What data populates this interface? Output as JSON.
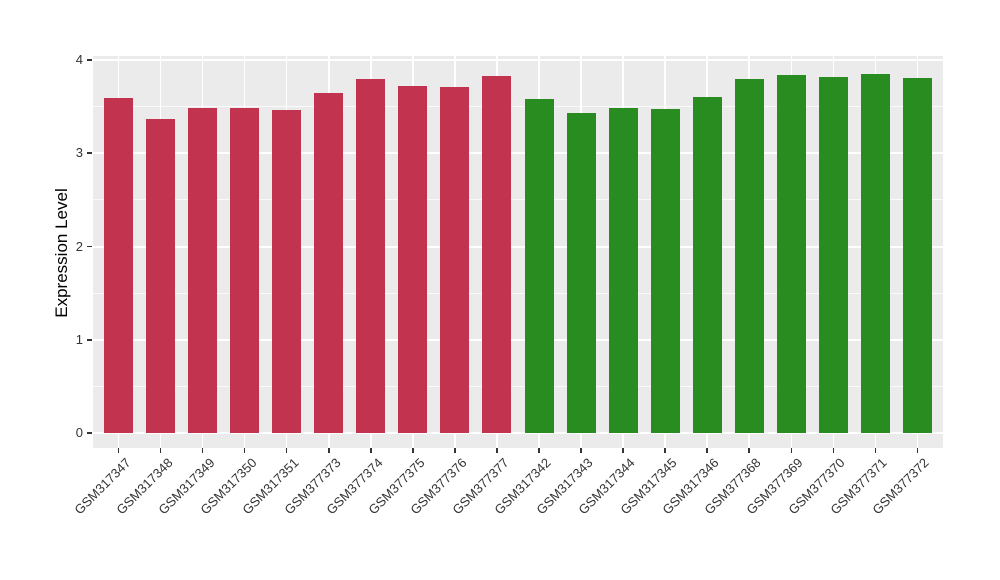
{
  "chart_data": {
    "type": "bar",
    "title": "",
    "xlabel": "",
    "ylabel": "Expression Level",
    "ylim": [
      0,
      4
    ],
    "yticks": [
      "0",
      "1",
      "2",
      "3",
      "4"
    ],
    "grid": true,
    "legend": false,
    "categories": [
      "GSM317347",
      "GSM317348",
      "GSM317349",
      "GSM317350",
      "GSM317351",
      "GSM377373",
      "GSM377374",
      "GSM377375",
      "GSM377376",
      "GSM377377",
      "GSM317342",
      "GSM317343",
      "GSM317344",
      "GSM317345",
      "GSM317346",
      "GSM377368",
      "GSM377369",
      "GSM377370",
      "GSM377371",
      "GSM377372"
    ],
    "values": [
      3.59,
      3.37,
      3.49,
      3.48,
      3.46,
      3.65,
      3.8,
      3.72,
      3.71,
      3.83,
      3.58,
      3.43,
      3.48,
      3.47,
      3.6,
      3.8,
      3.84,
      3.82,
      3.85,
      3.81
    ],
    "bar_groups": [
      "group1",
      "group1",
      "group1",
      "group1",
      "group1",
      "group1",
      "group1",
      "group1",
      "group1",
      "group1",
      "group2",
      "group2",
      "group2",
      "group2",
      "group2",
      "group2",
      "group2",
      "group2",
      "group2",
      "group2"
    ],
    "group_colors": {
      "group1": "#C23350",
      "group2": "#288C21"
    },
    "style": {
      "panel_bg": "#EBEBEB",
      "grid_color": "#FFFFFF",
      "tick_color": "#333333",
      "tick_label_color": "#333333",
      "axis_title_color": "#000000"
    }
  }
}
